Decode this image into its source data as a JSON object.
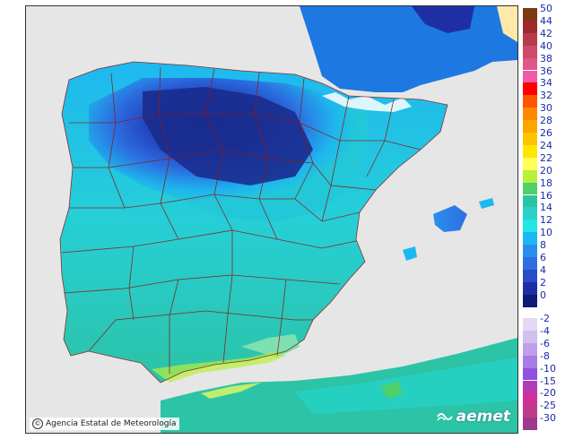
{
  "credit": {
    "text": "Agencia Estatal de Meteorología",
    "icon": "copyright-icon"
  },
  "logo": {
    "text": "aemet",
    "icon": "aemet-logo-icon"
  },
  "legend": {
    "positive": [
      {
        "label": "50",
        "color": "#7a3a12"
      },
      {
        "label": "44",
        "color": "#9e2a2a"
      },
      {
        "label": "42",
        "color": "#b83a4a"
      },
      {
        "label": "40",
        "color": "#cf4a6a"
      },
      {
        "label": "38",
        "color": "#e0558a"
      },
      {
        "label": "36",
        "color": "#f15ba6"
      },
      {
        "label": "34",
        "color": "#ff0000"
      },
      {
        "label": "32",
        "color": "#ff5500"
      },
      {
        "label": "30",
        "color": "#ff8800"
      },
      {
        "label": "28",
        "color": "#ffa500"
      },
      {
        "label": "26",
        "color": "#ffc400"
      },
      {
        "label": "24",
        "color": "#ffe600"
      },
      {
        "label": "22",
        "color": "#ffff55"
      },
      {
        "label": "20",
        "color": "#b6f03c"
      },
      {
        "label": "18",
        "color": "#4ed06a"
      },
      {
        "label": "16",
        "color": "#2cc3a0"
      },
      {
        "label": "14",
        "color": "#2ad1c8"
      },
      {
        "label": "12",
        "color": "#20e6e6"
      },
      {
        "label": "10",
        "color": "#1eb8f0"
      },
      {
        "label": "8",
        "color": "#2a8fec"
      },
      {
        "label": "6",
        "color": "#2f6ee0"
      },
      {
        "label": "4",
        "color": "#2a4cc8"
      },
      {
        "label": "2",
        "color": "#1e2fa6"
      },
      {
        "label": "0",
        "color": "#101a78"
      }
    ],
    "negative": [
      {
        "label": "-2",
        "color": "#e4d8f2"
      },
      {
        "label": "-4",
        "color": "#d2bfee"
      },
      {
        "label": "-6",
        "color": "#bf9eea"
      },
      {
        "label": "-8",
        "color": "#a77ce6"
      },
      {
        "label": "-10",
        "color": "#9050e0"
      },
      {
        "label": "-15",
        "color": "#b43ab8"
      },
      {
        "label": "-20",
        "color": "#d0309a"
      },
      {
        "label": "-25",
        "color": "#c03a8a"
      },
      {
        "label": "-30",
        "color": "#9c3a8c"
      }
    ]
  }
}
